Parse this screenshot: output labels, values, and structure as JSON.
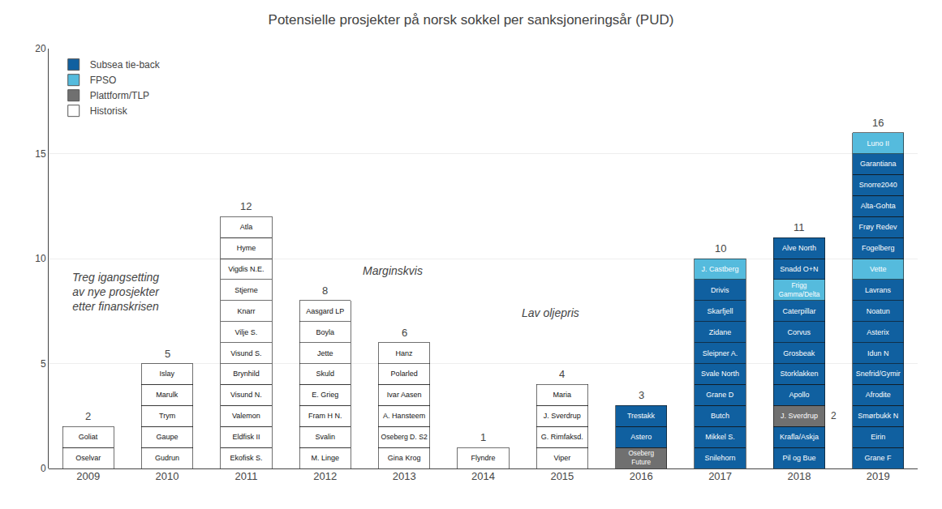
{
  "chart_data": {
    "type": "bar",
    "stacked": true,
    "title": "Potensielle prosjekter på norsk sokkel per sanksjoneringsår (PUD)",
    "categories": [
      "2009",
      "2010",
      "2011",
      "2012",
      "2013",
      "2014",
      "2015",
      "2016",
      "2017",
      "2018",
      "2019"
    ],
    "series": [
      {
        "name": "Historisk",
        "color": "#ffffff"
      },
      {
        "name": "Plattform/TLP",
        "color": "#707070"
      },
      {
        "name": "FPSO",
        "color": "#55bbdd"
      },
      {
        "name": "Subsea tie-back",
        "color": "#1060a0"
      }
    ],
    "stacks": [
      [
        {
          "label": "Oselvar",
          "color": "#ffffff",
          "value": 1
        },
        {
          "label": "Goliat",
          "color": "#ffffff",
          "value": 1
        }
      ],
      [
        {
          "label": "Gudrun",
          "color": "#ffffff",
          "value": 1
        },
        {
          "label": "Gaupe",
          "color": "#ffffff",
          "value": 1
        },
        {
          "label": "Trym",
          "color": "#ffffff",
          "value": 1
        },
        {
          "label": "Marulk",
          "color": "#ffffff",
          "value": 1
        },
        {
          "label": "Islay",
          "color": "#ffffff",
          "value": 1
        }
      ],
      [
        {
          "label": "Ekofisk S.",
          "color": "#ffffff",
          "value": 1
        },
        {
          "label": "Eldfisk II",
          "color": "#ffffff",
          "value": 1
        },
        {
          "label": "Valemon",
          "color": "#ffffff",
          "value": 1
        },
        {
          "label": "Visund N.",
          "color": "#ffffff",
          "value": 1
        },
        {
          "label": "Brynhild",
          "color": "#ffffff",
          "value": 1
        },
        {
          "label": "Visund S.",
          "color": "#ffffff",
          "value": 1
        },
        {
          "label": "Vilje S.",
          "color": "#ffffff",
          "value": 1
        },
        {
          "label": "Knarr",
          "color": "#ffffff",
          "value": 1
        },
        {
          "label": "Stjerne",
          "color": "#ffffff",
          "value": 1
        },
        {
          "label": "Vigdis N.E.",
          "color": "#ffffff",
          "value": 1
        },
        {
          "label": "Hyme",
          "color": "#ffffff",
          "value": 1
        },
        {
          "label": "Atla",
          "color": "#ffffff",
          "value": 1
        }
      ],
      [
        {
          "label": "M. Linge",
          "color": "#ffffff",
          "value": 1
        },
        {
          "label": "Svalin",
          "color": "#ffffff",
          "value": 1
        },
        {
          "label": "Fram H N.",
          "color": "#ffffff",
          "value": 1
        },
        {
          "label": "E. Grieg",
          "color": "#ffffff",
          "value": 1
        },
        {
          "label": "Skuld",
          "color": "#ffffff",
          "value": 1
        },
        {
          "label": "Jette",
          "color": "#ffffff",
          "value": 1
        },
        {
          "label": "Boyla",
          "color": "#ffffff",
          "value": 1
        },
        {
          "label": "Aasgard LP",
          "color": "#ffffff",
          "value": 1
        }
      ],
      [
        {
          "label": "Gina Krog",
          "color": "#ffffff",
          "value": 1
        },
        {
          "label": "Oseberg D. S2",
          "color": "#ffffff",
          "value": 1
        },
        {
          "label": "A. Hansteem",
          "color": "#ffffff",
          "value": 1
        },
        {
          "label": "Ivar Aasen",
          "color": "#ffffff",
          "value": 1
        },
        {
          "label": "Polarled",
          "color": "#ffffff",
          "value": 1
        },
        {
          "label": "Hanz",
          "color": "#ffffff",
          "value": 1
        }
      ],
      [
        {
          "label": "Flyndre",
          "color": "#ffffff",
          "value": 1
        }
      ],
      [
        {
          "label": "Viper",
          "color": "#ffffff",
          "value": 1
        },
        {
          "label": "G. Rimfaksd.",
          "color": "#ffffff",
          "value": 1
        },
        {
          "label": "J. Sverdrup",
          "color": "#ffffff",
          "value": 1
        },
        {
          "label": "Maria",
          "color": "#ffffff",
          "value": 1
        }
      ],
      [
        {
          "label": "Oseberg\nFuture",
          "color": "#707070",
          "value": 1
        },
        {
          "label": "Astero",
          "color": "#1060a0",
          "value": 1
        },
        {
          "label": "Trestakk",
          "color": "#1060a0",
          "value": 1
        }
      ],
      [
        {
          "label": "Snilehorn",
          "color": "#1060a0",
          "value": 1
        },
        {
          "label": "Mikkel S.",
          "color": "#1060a0",
          "value": 1
        },
        {
          "label": "Butch",
          "color": "#1060a0",
          "value": 1
        },
        {
          "label": "Grane D",
          "color": "#1060a0",
          "value": 1
        },
        {
          "label": "Svale North",
          "color": "#1060a0",
          "value": 1
        },
        {
          "label": "Sleipner A.",
          "color": "#1060a0",
          "value": 1
        },
        {
          "label": "Zidane",
          "color": "#1060a0",
          "value": 1
        },
        {
          "label": "Skarfjell",
          "color": "#1060a0",
          "value": 1
        },
        {
          "label": "Drivis",
          "color": "#1060a0",
          "value": 1
        },
        {
          "label": "J. Castberg",
          "color": "#55bbdd",
          "value": 1
        }
      ],
      [
        {
          "label": "Pil og Bue",
          "color": "#1060a0",
          "value": 1
        },
        {
          "label": "Krafla/Askja",
          "color": "#1060a0",
          "value": 1
        },
        {
          "label": "J. Sverdrup",
          "color": "#707070",
          "value": 1,
          "note": "2"
        },
        {
          "label": "Apollo",
          "color": "#1060a0",
          "value": 1
        },
        {
          "label": "Storklakken",
          "color": "#1060a0",
          "value": 1
        },
        {
          "label": "Grosbeak",
          "color": "#1060a0",
          "value": 1
        },
        {
          "label": "Corvus",
          "color": "#1060a0",
          "value": 1
        },
        {
          "label": "Caterpillar",
          "color": "#1060a0",
          "value": 1
        },
        {
          "label": "Frigg\nGamma/Delta",
          "color": "#55bbdd",
          "value": 1
        },
        {
          "label": "Snadd O+N",
          "color": "#1060a0",
          "value": 1
        },
        {
          "label": "Alve North",
          "color": "#1060a0",
          "value": 1
        }
      ],
      [
        {
          "label": "Grane F",
          "color": "#1060a0",
          "value": 1
        },
        {
          "label": "Eirin",
          "color": "#1060a0",
          "value": 1
        },
        {
          "label": "Smørbukk N",
          "color": "#1060a0",
          "value": 1
        },
        {
          "label": "Afrodite",
          "color": "#1060a0",
          "value": 1
        },
        {
          "label": "Snefrid/Gymir",
          "color": "#1060a0",
          "value": 1
        },
        {
          "label": "Idun N",
          "color": "#1060a0",
          "value": 1
        },
        {
          "label": "Asterix",
          "color": "#1060a0",
          "value": 1
        },
        {
          "label": "Noatun",
          "color": "#1060a0",
          "value": 1
        },
        {
          "label": "Lavrans",
          "color": "#1060a0",
          "value": 1
        },
        {
          "label": "Vette",
          "color": "#55bbdd",
          "value": 1
        },
        {
          "label": "Fogelberg",
          "color": "#1060a0",
          "value": 1
        },
        {
          "label": "Frøy Redev",
          "color": "#1060a0",
          "value": 1
        },
        {
          "label": "Alta-Gohta",
          "color": "#1060a0",
          "value": 1
        },
        {
          "label": "Snorre2040",
          "color": "#1060a0",
          "value": 1
        },
        {
          "label": "Garantiana",
          "color": "#1060a0",
          "value": 1
        },
        {
          "label": "Luno II",
          "color": "#55bbdd",
          "value": 1
        }
      ]
    ],
    "totals": [
      2,
      5,
      12,
      8,
      6,
      1,
      4,
      3,
      10,
      11,
      16
    ],
    "annotations": [
      {
        "text": "Treg igangsetting\nav nye prosjekter\netter finanskrisen",
        "x": 0.35,
        "y": 9.5
      },
      {
        "text": "Marginskvis",
        "x": 3.85,
        "y": 9.8
      },
      {
        "text": "Lav oljepris",
        "x": 5.85,
        "y": 7.8
      }
    ],
    "ylim": [
      0,
      20
    ],
    "yticks": [
      0,
      5,
      10,
      15,
      20
    ],
    "grid": true,
    "legend": "top left"
  }
}
